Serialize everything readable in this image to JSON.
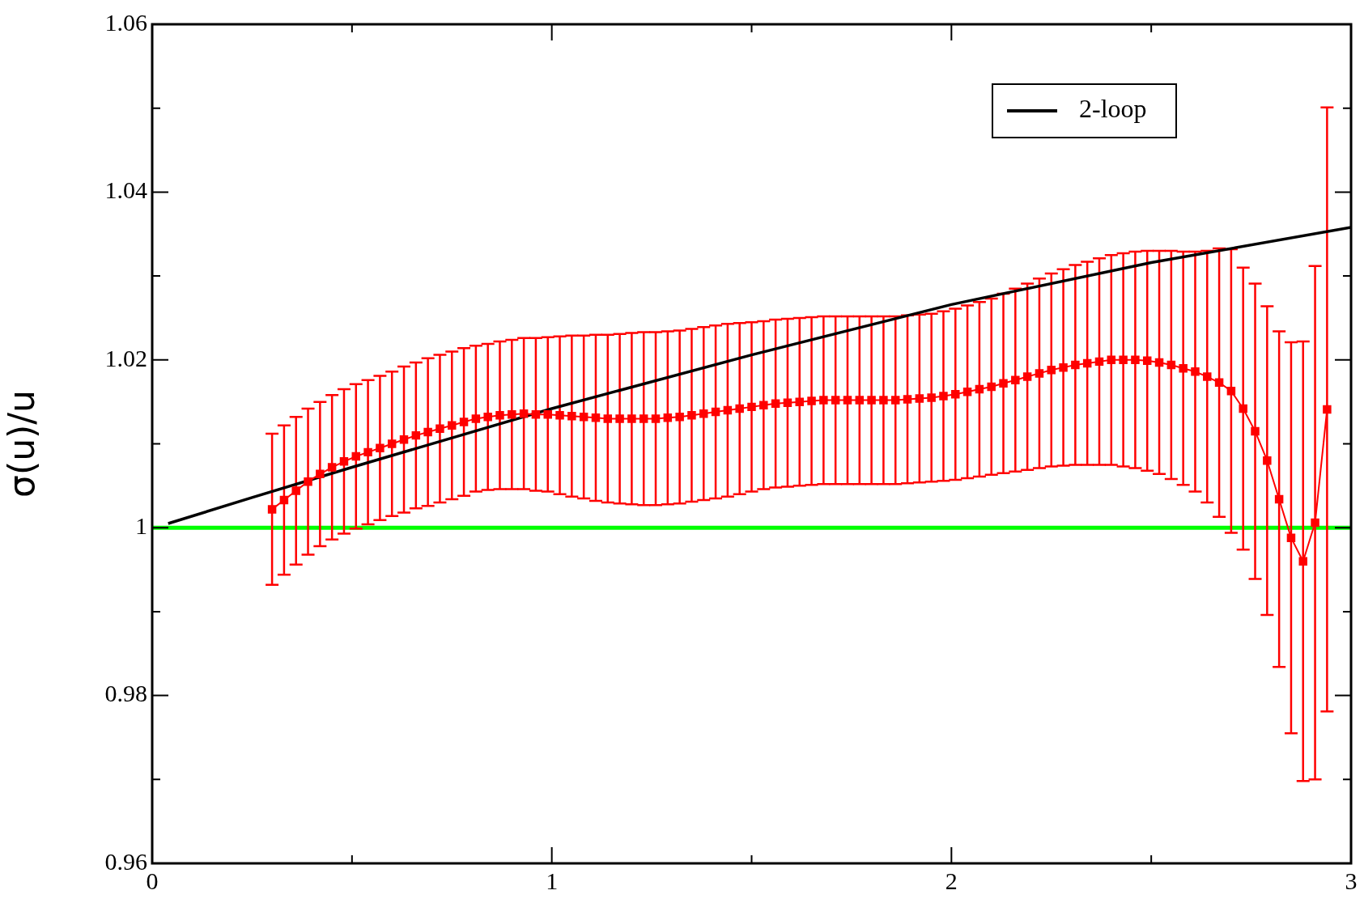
{
  "chart_data": {
    "type": "line",
    "ylabel": "σ(u)/u",
    "xlim": [
      0,
      3
    ],
    "ylim": [
      0.96,
      1.06
    ],
    "xticks": [
      0,
      {
        "value": 0.5,
        "label": null
      },
      1,
      {
        "value": 1.5,
        "label": null
      },
      2,
      {
        "value": 2.5,
        "label": null
      },
      3
    ],
    "yticks": [
      0.96,
      {
        "value": 0.97,
        "label": null
      },
      0.98,
      {
        "value": 0.99,
        "label": null
      },
      1,
      {
        "value": 1.01,
        "label": null
      },
      1.02,
      {
        "value": 1.03,
        "label": null
      },
      1.04,
      {
        "value": 1.05,
        "label": null
      },
      1.06
    ],
    "grid": false,
    "legend": "top right",
    "series": [
      {
        "color": "#ff0000",
        "marker": "square",
        "x": [
          0.3,
          0.33,
          0.36,
          0.39,
          0.42,
          0.45,
          0.48,
          0.51,
          0.54,
          0.57,
          0.6,
          0.63,
          0.66,
          0.69,
          0.72,
          0.75,
          0.78,
          0.81,
          0.84,
          0.87,
          0.9,
          0.93,
          0.96,
          0.99,
          1.02,
          1.05,
          1.08,
          1.11,
          1.14,
          1.17,
          1.2,
          1.23,
          1.26,
          1.29,
          1.32,
          1.35,
          1.38,
          1.41,
          1.44,
          1.47,
          1.5,
          1.53,
          1.56,
          1.59,
          1.62,
          1.65,
          1.68,
          1.71,
          1.74,
          1.77,
          1.8,
          1.83,
          1.86,
          1.89,
          1.92,
          1.95,
          1.98,
          2.01,
          2.04,
          2.07,
          2.1,
          2.13,
          2.16,
          2.19,
          2.22,
          2.25,
          2.28,
          2.31,
          2.34,
          2.37,
          2.4,
          2.43,
          2.46,
          2.49,
          2.52,
          2.55,
          2.58,
          2.61,
          2.64,
          2.67,
          2.7,
          2.73,
          2.76,
          2.79,
          2.82,
          2.85,
          2.88,
          2.91,
          2.94
        ],
        "values": [
          1.0022,
          1.0033,
          1.0044,
          1.0055,
          1.0064,
          1.0072,
          1.0079,
          1.0085,
          1.009,
          1.0095,
          1.01,
          1.0105,
          1.011,
          1.0114,
          1.0118,
          1.0122,
          1.0126,
          1.013,
          1.0132,
          1.0134,
          1.0135,
          1.0136,
          1.0135,
          1.0135,
          1.0134,
          1.0133,
          1.0132,
          1.0131,
          1.013,
          1.013,
          1.013,
          1.013,
          1.013,
          1.0131,
          1.0132,
          1.0134,
          1.0136,
          1.0138,
          1.014,
          1.0142,
          1.0144,
          1.0146,
          1.0148,
          1.0149,
          1.015,
          1.0151,
          1.0152,
          1.0152,
          1.0152,
          1.0152,
          1.0152,
          1.0152,
          1.0152,
          1.0153,
          1.0154,
          1.0155,
          1.0157,
          1.0159,
          1.0162,
          1.0165,
          1.0168,
          1.0172,
          1.0176,
          1.018,
          1.0184,
          1.0188,
          1.0191,
          1.0194,
          1.0196,
          1.0198,
          1.02,
          1.02,
          1.02,
          1.0199,
          1.0197,
          1.0194,
          1.019,
          1.0186,
          1.018,
          1.0173,
          1.0163,
          1.0142,
          1.0115,
          1.008,
          1.0034,
          0.9988,
          0.996,
          1.0006,
          1.0141
        ],
        "errors": [
          0.009,
          0.0089,
          0.0088,
          0.0087,
          0.0086,
          0.0086,
          0.0086,
          0.0086,
          0.0086,
          0.0086,
          0.0086,
          0.0087,
          0.0087,
          0.0088,
          0.0088,
          0.0088,
          0.0088,
          0.0087,
          0.0087,
          0.0088,
          0.0089,
          0.009,
          0.0091,
          0.0092,
          0.0094,
          0.0096,
          0.0097,
          0.0099,
          0.01,
          0.0101,
          0.0102,
          0.0103,
          0.0103,
          0.0103,
          0.0103,
          0.0103,
          0.0103,
          0.0103,
          0.0103,
          0.0102,
          0.0101,
          0.01,
          0.01,
          0.01,
          0.01,
          0.01,
          0.01,
          0.01,
          0.01,
          0.01,
          0.01,
          0.01,
          0.01,
          0.01,
          0.01,
          0.01,
          0.0101,
          0.0102,
          0.0103,
          0.0104,
          0.0105,
          0.0107,
          0.0109,
          0.0111,
          0.0113,
          0.0115,
          0.0117,
          0.0119,
          0.0121,
          0.0123,
          0.0125,
          0.0127,
          0.0129,
          0.0131,
          0.0133,
          0.0136,
          0.0139,
          0.0143,
          0.015,
          0.016,
          0.0169,
          0.0168,
          0.0176,
          0.0184,
          0.02,
          0.0233,
          0.0262,
          0.0306,
          0.036
        ]
      },
      {
        "name": "2-loop",
        "color": "#000000",
        "marker": "none",
        "x": [
          0.04,
          0.25,
          0.5,
          1,
          1.5,
          2,
          2.5,
          3
        ],
        "values": [
          1.0005,
          1.0036,
          1.0072,
          1.0142,
          1.0206,
          1.0266,
          1.0316,
          1.0358
        ]
      }
    ],
    "ref_lines": [
      {
        "axis": "y",
        "value": 1,
        "color": "#00ff00"
      }
    ]
  }
}
